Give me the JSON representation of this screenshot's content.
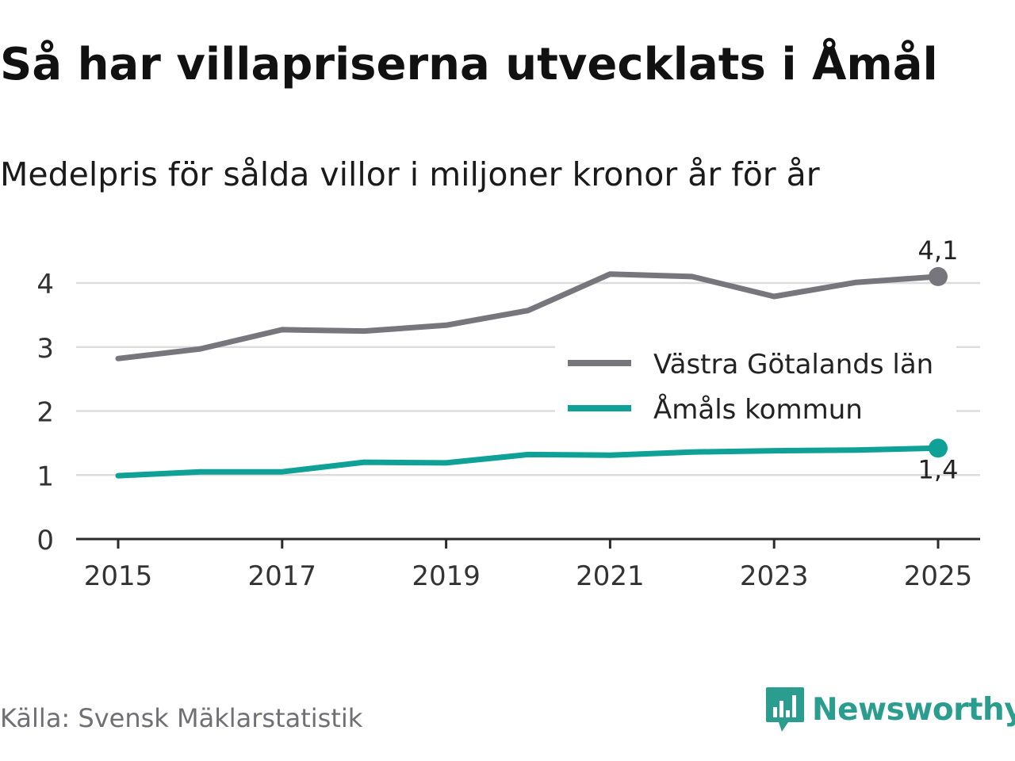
{
  "title": "Så har villapriserna utvecklats i Åmål",
  "subtitle": "Medelpris för sålda villor i miljoner kronor år för år",
  "source": "Källa: Svensk Mäklarstatistik",
  "brand": {
    "name": "Newsworthy",
    "icon": "newsworthy-logo-icon",
    "color": "#2a9d8f"
  },
  "chart_data": {
    "type": "line",
    "title": "Så har villapriserna utvecklats i Åmål",
    "subtitle": "Medelpris för sålda villor i miljoner kronor år för år",
    "xlabel": "",
    "ylabel": "",
    "x": [
      2015,
      2016,
      2017,
      2018,
      2019,
      2020,
      2021,
      2022,
      2023,
      2024,
      2025
    ],
    "xticks": [
      "2015",
      "2017",
      "2019",
      "2021",
      "2023",
      "2025"
    ],
    "yticks": [
      "0",
      "1",
      "2",
      "3",
      "4"
    ],
    "ylim": [
      0,
      4.3
    ],
    "grid": true,
    "legend_position": "right-center",
    "series": [
      {
        "name": "Västra Götalands län",
        "color": "#76767c",
        "values": [
          2.82,
          2.97,
          3.27,
          3.25,
          3.34,
          3.57,
          4.14,
          4.1,
          3.79,
          4.01,
          4.1
        ],
        "end_label": "4,1"
      },
      {
        "name": "Åmåls kommun",
        "color": "#0fa197",
        "values": [
          0.99,
          1.05,
          1.05,
          1.2,
          1.19,
          1.32,
          1.31,
          1.36,
          1.38,
          1.39,
          1.42
        ],
        "end_label": "1,4"
      }
    ]
  }
}
